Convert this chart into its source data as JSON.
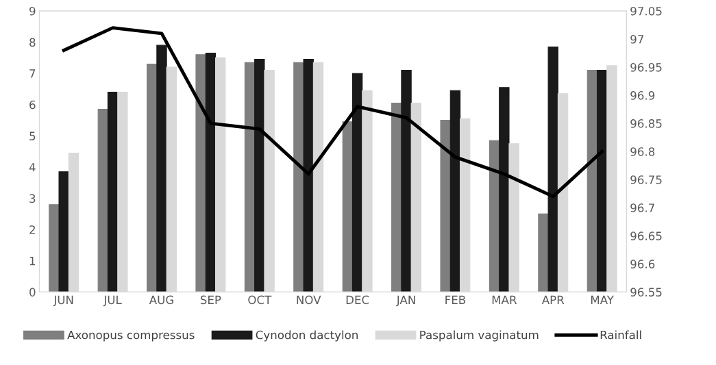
{
  "chart_data": {
    "type": "bar",
    "categories": [
      "JUN",
      "JUL",
      "AUG",
      "SEP",
      "OCT",
      "NOV",
      "DEC",
      "JAN",
      "FEB",
      "MAR",
      "APR",
      "MAY"
    ],
    "series": [
      {
        "name": "Axonopus compressus",
        "color": "#7f7f7f",
        "values": [
          2.8,
          5.85,
          7.3,
          7.6,
          7.35,
          7.35,
          5.45,
          6.05,
          5.5,
          4.85,
          2.5,
          7.1
        ]
      },
      {
        "name": "Cynodon dactylon",
        "color": "#1a1a1a",
        "values": [
          3.85,
          6.4,
          7.9,
          7.65,
          7.45,
          7.45,
          7.0,
          7.1,
          6.45,
          6.55,
          7.85,
          7.1
        ]
      },
      {
        "name": "Paspalum vaginatum",
        "color": "#d9d9d9",
        "values": [
          4.45,
          6.4,
          7.2,
          7.5,
          7.1,
          7.35,
          6.45,
          6.05,
          5.55,
          4.75,
          6.35,
          7.25
        ]
      },
      {
        "name": "Rainfall",
        "type": "line",
        "axis": "y2",
        "color": "#000000",
        "values": [
          96.98,
          97.02,
          97.01,
          96.85,
          96.84,
          96.76,
          96.88,
          96.86,
          96.79,
          96.76,
          96.72,
          96.8
        ]
      }
    ],
    "ylim": [
      0,
      9
    ],
    "yticks": [
      0,
      1,
      2,
      3,
      4,
      5,
      6,
      7,
      8,
      9
    ],
    "y2lim": [
      96.55,
      97.05
    ],
    "y2ticks": [
      96.55,
      96.6,
      96.65,
      96.7,
      96.75,
      96.8,
      96.85,
      96.9,
      96.95,
      97,
      97.05
    ],
    "grid": false,
    "legend": "bottom",
    "marker": "none",
    "line_style": "solid"
  }
}
